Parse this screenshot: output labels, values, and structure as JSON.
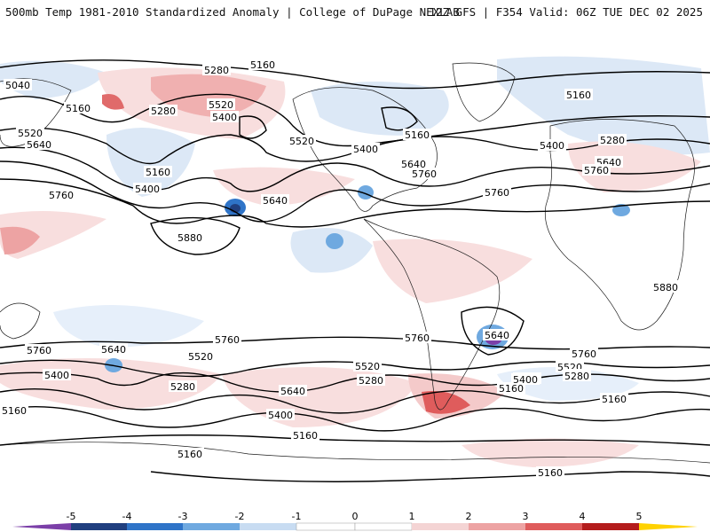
{
  "header": {
    "left_title": "500mb Temp 1981-2010 Standardized Anomaly | College of DuPage NEXLAB",
    "right_title": "12Z GFS | F354 Valid: 06Z TUE DEC 02 2025"
  },
  "contour_labels": [
    "5040",
    "5280",
    "5160",
    "5160",
    "5280",
    "5520",
    "5400",
    "5520",
    "5640",
    "5160",
    "5400",
    "5760",
    "5640",
    "5880",
    "5640",
    "5760",
    "5160",
    "5520",
    "5400",
    "5640",
    "5760",
    "5400",
    "5280",
    "5160",
    "5640",
    "5760",
    "5880",
    "5760",
    "5640",
    "5520",
    "5400",
    "5280",
    "5160",
    "5760",
    "5640",
    "5520",
    "5400",
    "5280",
    "5160",
    "5400",
    "5640",
    "5520",
    "5280",
    "5160",
    "5160",
    "5760",
    "5760",
    "5520",
    "5400",
    "5280",
    "5160",
    "5160"
  ],
  "colorbar": {
    "ticks": [
      "-5",
      "-4",
      "-3",
      "-2",
      "-1",
      "0",
      "1",
      "2",
      "3",
      "4",
      "5"
    ],
    "colors": {
      "neg5": "#7b3fa8",
      "neg4": "#203f7f",
      "neg3": "#2f74c8",
      "neg2": "#6fa9e0",
      "neg1": "#c8dcf2",
      "zero_low": "#ffffff",
      "zero_high": "#ffffff",
      "pos1": "#f4d4d4",
      "pos2": "#eda3a3",
      "pos3": "#df5c5c",
      "pos4": "#b41c1c",
      "pos5": "#ffd200"
    }
  }
}
